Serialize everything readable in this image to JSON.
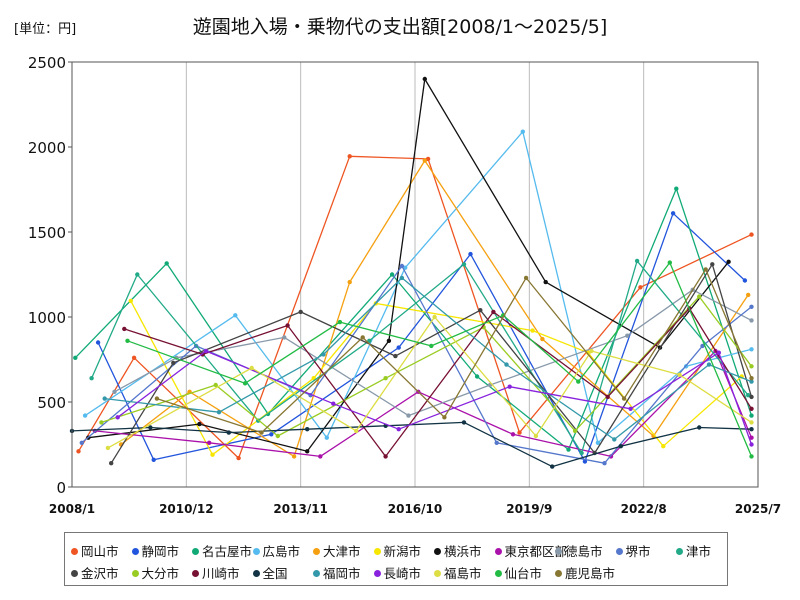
{
  "unit_label": "[単位：円]",
  "chart_data": {
    "type": "line",
    "title": "遊園地入場・乗物代の支出額[2008/1～2025/5]",
    "xlabel": "",
    "ylabel": "",
    "ylim": [
      0,
      2500
    ],
    "yticks": [
      0,
      500,
      1000,
      1500,
      2000,
      2500
    ],
    "x_range": [
      "2008/1",
      "2025/7"
    ],
    "xticks": [
      "2008/1",
      "2010/12",
      "2013/11",
      "2016/10",
      "2019/9",
      "2022/8",
      "2025/7"
    ],
    "grid": "vertical",
    "legend_position": "bottom",
    "series": [
      {
        "name": "岡山市",
        "color": "#ee5522",
        "points": [
          {
            "x": "2008/3",
            "y": 210
          },
          {
            "x": "2009/8",
            "y": 760
          },
          {
            "x": "2012/4",
            "y": 170
          },
          {
            "x": "2015/2",
            "y": 1945
          },
          {
            "x": "2017/2",
            "y": 1930
          },
          {
            "x": "2019/6",
            "y": 320
          },
          {
            "x": "2022/7",
            "y": 1175
          },
          {
            "x": "2025/5",
            "y": 1485
          }
        ]
      },
      {
        "name": "静岡市",
        "color": "#2255dd",
        "points": [
          {
            "x": "2008/9",
            "y": 850
          },
          {
            "x": "2010/2",
            "y": 160
          },
          {
            "x": "2013/2",
            "y": 310
          },
          {
            "x": "2016/5",
            "y": 820
          },
          {
            "x": "2018/3",
            "y": 1370
          },
          {
            "x": "2021/2",
            "y": 150
          },
          {
            "x": "2023/5",
            "y": 1610
          },
          {
            "x": "2025/3",
            "y": 1215
          }
        ]
      },
      {
        "name": "名古屋市",
        "color": "#11aa77",
        "points": [
          {
            "x": "2008/2",
            "y": 760
          },
          {
            "x": "2010/6",
            "y": 1315
          },
          {
            "x": "2013/1",
            "y": 430
          },
          {
            "x": "2016/3",
            "y": 1250
          },
          {
            "x": "2018/5",
            "y": 650
          },
          {
            "x": "2020/9",
            "y": 220
          },
          {
            "x": "2023/6",
            "y": 1755
          },
          {
            "x": "2025/5",
            "y": 420
          }
        ]
      },
      {
        "name": "広島市",
        "color": "#55bbee",
        "points": [
          {
            "x": "2008/5",
            "y": 420
          },
          {
            "x": "2012/3",
            "y": 1010
          },
          {
            "x": "2014/7",
            "y": 290
          },
          {
            "x": "2016/7",
            "y": 1290
          },
          {
            "x": "2019/7",
            "y": 2090
          },
          {
            "x": "2021/6",
            "y": 260
          },
          {
            "x": "2023/9",
            "y": 710
          },
          {
            "x": "2025/5",
            "y": 810
          }
        ]
      },
      {
        "name": "大津市",
        "color": "#f5a010",
        "points": [
          {
            "x": "2009/4",
            "y": 250
          },
          {
            "x": "2011/1",
            "y": 560
          },
          {
            "x": "2013/9",
            "y": 180
          },
          {
            "x": "2015/2",
            "y": 1205
          },
          {
            "x": "2017/1",
            "y": 1920
          },
          {
            "x": "2020/1",
            "y": 870
          },
          {
            "x": "2022/11",
            "y": 300
          },
          {
            "x": "2025/4",
            "y": 1130
          }
        ]
      },
      {
        "name": "新潟市",
        "color": "#f7e600",
        "points": [
          {
            "x": "2009/7",
            "y": 1095
          },
          {
            "x": "2011/8",
            "y": 190
          },
          {
            "x": "2014/3",
            "y": 640
          },
          {
            "x": "2015/10",
            "y": 1080
          },
          {
            "x": "2019/10",
            "y": 920
          },
          {
            "x": "2021/3",
            "y": 790
          },
          {
            "x": "2023/2",
            "y": 240
          },
          {
            "x": "2025/2",
            "y": 650
          }
        ]
      },
      {
        "name": "横浜市",
        "color": "#111111",
        "points": [
          {
            "x": "2008/6",
            "y": 290
          },
          {
            "x": "2011/4",
            "y": 370
          },
          {
            "x": "2014/1",
            "y": 210
          },
          {
            "x": "2016/2",
            "y": 860
          },
          {
            "x": "2017/1",
            "y": 2400
          },
          {
            "x": "2020/2",
            "y": 1205
          },
          {
            "x": "2023/1",
            "y": 820
          },
          {
            "x": "2024/10",
            "y": 1325
          }
        ]
      },
      {
        "name": "東京都区部",
        "color": "#aa11aa",
        "points": [
          {
            "x": "2008/8",
            "y": 330
          },
          {
            "x": "2011/7",
            "y": 260
          },
          {
            "x": "2014/5",
            "y": 180
          },
          {
            "x": "2016/11",
            "y": 560
          },
          {
            "x": "2019/4",
            "y": 310
          },
          {
            "x": "2021/10",
            "y": 180
          },
          {
            "x": "2024/6",
            "y": 800
          },
          {
            "x": "2025/5",
            "y": 290
          }
        ]
      },
      {
        "name": "徳島市",
        "color": "#8899aa",
        "points": [
          {
            "x": "2009/2",
            "y": 560
          },
          {
            "x": "2010/9",
            "y": 760
          },
          {
            "x": "2013/6",
            "y": 880
          },
          {
            "x": "2016/8",
            "y": 420
          },
          {
            "x": "2018/9",
            "y": 600
          },
          {
            "x": "2022/3",
            "y": 890
          },
          {
            "x": "2023/11",
            "y": 1160
          },
          {
            "x": "2025/5",
            "y": 980
          }
        ]
      },
      {
        "name": "堺市",
        "color": "#5577cc",
        "points": [
          {
            "x": "2008/4",
            "y": 260
          },
          {
            "x": "2011/3",
            "y": 830
          },
          {
            "x": "2014/2",
            "y": 540
          },
          {
            "x": "2016/6",
            "y": 1300
          },
          {
            "x": "2018/11",
            "y": 260
          },
          {
            "x": "2021/8",
            "y": 140
          },
          {
            "x": "2024/2",
            "y": 830
          },
          {
            "x": "2025/5",
            "y": 1060
          }
        ]
      },
      {
        "name": "津市",
        "color": "#22aa88",
        "points": [
          {
            "x": "2008/7",
            "y": 640
          },
          {
            "x": "2009/9",
            "y": 1250
          },
          {
            "x": "2012/10",
            "y": 390
          },
          {
            "x": "2015/8",
            "y": 860
          },
          {
            "x": "2018/1",
            "y": 1310
          },
          {
            "x": "2021/1",
            "y": 200
          },
          {
            "x": "2022/6",
            "y": 1330
          },
          {
            "x": "2025/4",
            "y": 540
          }
        ]
      },
      {
        "name": "金沢市",
        "color": "#444444",
        "points": [
          {
            "x": "2009/1",
            "y": 140
          },
          {
            "x": "2010/8",
            "y": 730
          },
          {
            "x": "2013/11",
            "y": 1030
          },
          {
            "x": "2016/4",
            "y": 770
          },
          {
            "x": "2018/6",
            "y": 1040
          },
          {
            "x": "2021/5",
            "y": 200
          },
          {
            "x": "2024/5",
            "y": 1310
          },
          {
            "x": "2025/5",
            "y": 530
          }
        ]
      },
      {
        "name": "大分市",
        "color": "#99cc22",
        "points": [
          {
            "x": "2008/10",
            "y": 380
          },
          {
            "x": "2011/9",
            "y": 600
          },
          {
            "x": "2013/4",
            "y": 300
          },
          {
            "x": "2016/1",
            "y": 640
          },
          {
            "x": "2018/7",
            "y": 940
          },
          {
            "x": "2020/11",
            "y": 330
          },
          {
            "x": "2024/1",
            "y": 1120
          },
          {
            "x": "2025/5",
            "y": 710
          }
        ]
      },
      {
        "name": "川崎市",
        "color": "#771133",
        "points": [
          {
            "x": "2009/5",
            "y": 930
          },
          {
            "x": "2011/5",
            "y": 780
          },
          {
            "x": "2013/7",
            "y": 950
          },
          {
            "x": "2016/1",
            "y": 180
          },
          {
            "x": "2018/10",
            "y": 1030
          },
          {
            "x": "2021/9",
            "y": 530
          },
          {
            "x": "2023/10",
            "y": 1050
          },
          {
            "x": "2025/5",
            "y": 460
          }
        ]
      },
      {
        "name": "全国",
        "color": "#113344",
        "points": [
          {
            "x": "2008/1",
            "y": 330
          },
          {
            "x": "2010/1",
            "y": 350
          },
          {
            "x": "2012/1",
            "y": 320
          },
          {
            "x": "2014/1",
            "y": 340
          },
          {
            "x": "2016/1",
            "y": 360
          },
          {
            "x": "2018/1",
            "y": 380
          },
          {
            "x": "2020/4",
            "y": 120
          },
          {
            "x": "2022/1",
            "y": 240
          },
          {
            "x": "2024/1",
            "y": 350
          },
          {
            "x": "2025/5",
            "y": 340
          }
        ]
      },
      {
        "name": "福岡市",
        "color": "#3399aa",
        "points": [
          {
            "x": "2008/11",
            "y": 520
          },
          {
            "x": "2011/10",
            "y": 440
          },
          {
            "x": "2014/6",
            "y": 780
          },
          {
            "x": "2016/6",
            "y": 1230
          },
          {
            "x": "2019/2",
            "y": 720
          },
          {
            "x": "2021/11",
            "y": 280
          },
          {
            "x": "2024/4",
            "y": 720
          },
          {
            "x": "2025/5",
            "y": 620
          }
        ]
      },
      {
        "name": "長崎市",
        "color": "#8822dd",
        "points": [
          {
            "x": "2009/3",
            "y": 410
          },
          {
            "x": "2011/6",
            "y": 800
          },
          {
            "x": "2014/9",
            "y": 490
          },
          {
            "x": "2016/5",
            "y": 340
          },
          {
            "x": "2019/3",
            "y": 590
          },
          {
            "x": "2022/4",
            "y": 460
          },
          {
            "x": "2024/7",
            "y": 790
          },
          {
            "x": "2025/5",
            "y": 250
          }
        ]
      },
      {
        "name": "福島市",
        "color": "#dddd44",
        "points": [
          {
            "x": "2008/12",
            "y": 230
          },
          {
            "x": "2012/8",
            "y": 700
          },
          {
            "x": "2015/4",
            "y": 330
          },
          {
            "x": "2017/4",
            "y": 1000
          },
          {
            "x": "2019/11",
            "y": 300
          },
          {
            "x": "2021/4",
            "y": 800
          },
          {
            "x": "2023/7",
            "y": 660
          },
          {
            "x": "2025/5",
            "y": 380
          }
        ]
      },
      {
        "name": "仙台市",
        "color": "#22bb44",
        "points": [
          {
            "x": "2009/6",
            "y": 860
          },
          {
            "x": "2012/6",
            "y": 610
          },
          {
            "x": "2014/11",
            "y": 970
          },
          {
            "x": "2017/3",
            "y": 830
          },
          {
            "x": "2019/1",
            "y": 1010
          },
          {
            "x": "2020/12",
            "y": 620
          },
          {
            "x": "2023/4",
            "y": 1320
          },
          {
            "x": "2025/5",
            "y": 180
          }
        ]
      },
      {
        "name": "鹿児島市",
        "color": "#887733",
        "points": [
          {
            "x": "2010/3",
            "y": 520
          },
          {
            "x": "2012/11",
            "y": 320
          },
          {
            "x": "2015/6",
            "y": 880
          },
          {
            "x": "2017/7",
            "y": 410
          },
          {
            "x": "2019/8",
            "y": 1230
          },
          {
            "x": "2022/2",
            "y": 520
          },
          {
            "x": "2024/3",
            "y": 1280
          },
          {
            "x": "2025/5",
            "y": 640
          }
        ]
      }
    ]
  }
}
